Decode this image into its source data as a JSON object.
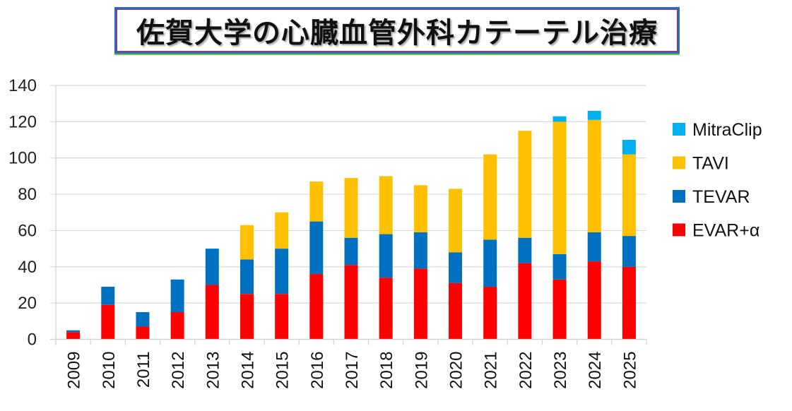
{
  "title": "佐賀大学の心臓血管外科カテーテル治療",
  "chart_data": {
    "type": "bar",
    "stacked": true,
    "title": "佐賀大学の心臓血管外科カテーテル治療",
    "xlabel": "",
    "ylabel": "",
    "ylim": [
      0,
      140
    ],
    "yticks": [
      0,
      20,
      40,
      60,
      80,
      100,
      120,
      140
    ],
    "grid": true,
    "legend_position": "right",
    "categories": [
      "2009",
      "2010",
      "2011",
      "2012",
      "2013",
      "2014",
      "2015",
      "2016",
      "2017",
      "2018",
      "2019",
      "2020",
      "2021",
      "2022",
      "2023",
      "2024",
      "2025"
    ],
    "series": [
      {
        "name": "EVAR+α",
        "color": "#ff0000",
        "values": [
          4,
          19,
          7,
          15,
          30,
          25,
          25,
          36,
          41,
          34,
          39,
          31,
          29,
          42,
          33,
          43,
          40
        ]
      },
      {
        "name": "TEVAR",
        "color": "#0070c0",
        "values": [
          1,
          10,
          8,
          18,
          20,
          19,
          25,
          29,
          15,
          24,
          20,
          17,
          26,
          14,
          14,
          16,
          17
        ]
      },
      {
        "name": "TAVI",
        "color": "#ffc000",
        "values": [
          0,
          0,
          0,
          0,
          0,
          19,
          20,
          22,
          33,
          32,
          26,
          35,
          47,
          59,
          73,
          62,
          45
        ]
      },
      {
        "name": "MitraClip",
        "color": "#00b0f0",
        "values": [
          0,
          0,
          0,
          0,
          0,
          0,
          0,
          0,
          0,
          0,
          0,
          0,
          0,
          0,
          3,
          5,
          8
        ]
      }
    ],
    "legend_order": [
      "MitraClip",
      "TAVI",
      "TEVAR",
      "EVAR+α"
    ]
  }
}
